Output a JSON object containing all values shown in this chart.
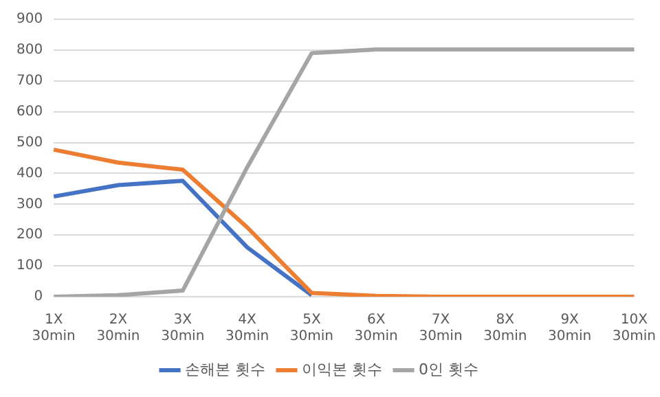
{
  "chart_data": {
    "type": "line",
    "categories": [
      "1X\n30min",
      "2X\n30min",
      "3X\n30min",
      "4X\n30min",
      "5X\n30min",
      "6X\n30min",
      "7X\n30min",
      "8X\n30min",
      "9X\n30min",
      "10X\n30min"
    ],
    "series": [
      {
        "name": "손해본 횟수",
        "color": "#4472c4",
        "values": [
          325,
          362,
          376,
          160,
          5,
          null,
          null,
          null,
          null,
          null
        ]
      },
      {
        "name": "이익본 횟수",
        "color": "#ed7d31",
        "values": [
          477,
          435,
          412,
          225,
          12,
          3,
          0,
          0,
          0,
          0
        ]
      },
      {
        "name": "0인 횟수",
        "color": "#a5a5a5",
        "values": [
          0,
          5,
          20,
          420,
          790,
          802,
          802,
          802,
          802,
          802
        ]
      }
    ],
    "ylim": [
      0,
      900
    ],
    "yticks": [
      0,
      100,
      200,
      300,
      400,
      500,
      600,
      700,
      800,
      900
    ],
    "grid": "y",
    "legend": "bottom",
    "marker": "none",
    "line_style": "solid"
  }
}
